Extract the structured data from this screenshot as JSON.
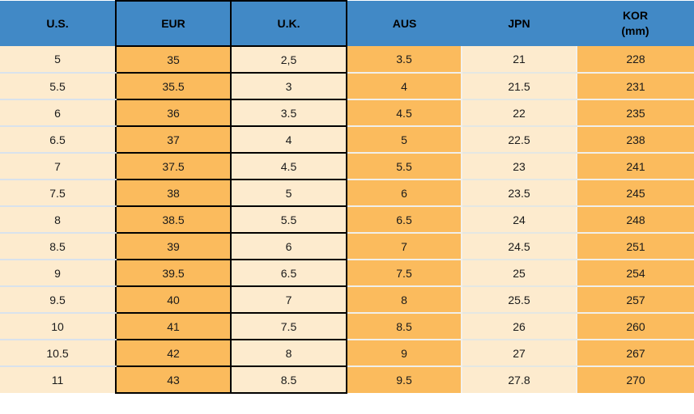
{
  "chart_data": {
    "type": "table",
    "title": "",
    "columns": [
      {
        "id": "us",
        "label": "U.S."
      },
      {
        "id": "eur",
        "label": "EUR"
      },
      {
        "id": "uk",
        "label": "U.K."
      },
      {
        "id": "aus",
        "label": "AUS"
      },
      {
        "id": "jpn",
        "label": "JPN"
      },
      {
        "id": "kor",
        "label": "KOR",
        "label_line2": "(mm)"
      }
    ],
    "rows": [
      [
        "5",
        "35",
        "2,5",
        "3.5",
        "21",
        "228"
      ],
      [
        "5.5",
        "35.5",
        "3",
        "4",
        "21.5",
        "231"
      ],
      [
        "6",
        "36",
        "3.5",
        "4.5",
        "22",
        "235"
      ],
      [
        "6.5",
        "37",
        "4",
        "5",
        "22.5",
        "238"
      ],
      [
        "7",
        "37.5",
        "4.5",
        "5.5",
        "23",
        "241"
      ],
      [
        "7.5",
        "38",
        "5",
        "6",
        "23.5",
        "245"
      ],
      [
        "8",
        "38.5",
        "5.5",
        "6.5",
        "24",
        "248"
      ],
      [
        "8.5",
        "39",
        "6",
        "7",
        "24.5",
        "251"
      ],
      [
        "9",
        "39.5",
        "6.5",
        "7.5",
        "25",
        "254"
      ],
      [
        "9.5",
        "40",
        "7",
        "8",
        "25.5",
        "257"
      ],
      [
        "10",
        "41",
        "7.5",
        "8.5",
        "26",
        "260"
      ],
      [
        "10.5",
        "42",
        "8",
        "9",
        "27",
        "267"
      ],
      [
        "11",
        "43",
        "8.5",
        "9.5",
        "27.8",
        "270"
      ]
    ]
  },
  "colors": {
    "header_bg": "#4189C6",
    "header_text": "#000000",
    "orange_cell": "#FBBB5D",
    "cream_cell": "#FDEBCE",
    "cell_text": "#1A1A1A",
    "border_black": "#000000",
    "separator_cream_col": "#D9E2EC",
    "separator_orange_col": "#F0EFEA",
    "separator_jpn_col": "#E4E7E3",
    "separator_vertical": "#F4F1EC"
  }
}
